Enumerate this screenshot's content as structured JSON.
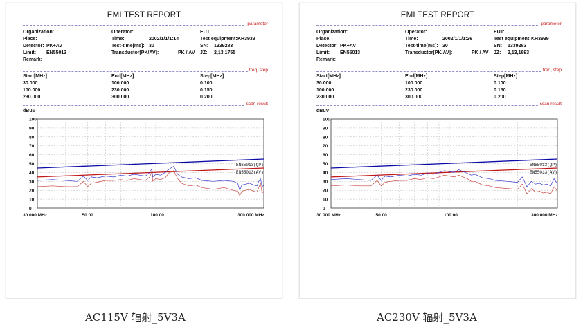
{
  "reports": [
    {
      "title": "EMI TEST REPORT",
      "section_labels": {
        "parameter": "parameter",
        "freq_step": "freq, step",
        "scan_result": "scan result"
      },
      "params": {
        "organization_label": "Organization:",
        "place_label": "Place:",
        "detector_label": "Detector:",
        "detector_value": "PK+AV",
        "limit_label": "Limit:",
        "limit_value": "EN55013",
        "remark_label": "Remark:",
        "operator_label": "Operator:",
        "time_label": "Time:",
        "time_value": "2002/1/1/1:14",
        "testtime_label": "Test-time[ms]:",
        "testtime_value": "30",
        "transducer_label": "Transductor[PK/AV]:",
        "transducer_value": "PK / AV",
        "eut_label": "EUT:",
        "equipment_label": "Test equipment:",
        "equipment_value": "KH3939",
        "sn_label": "SN:",
        "sn_value": "1339283",
        "jz_label": "JZ:",
        "jz_value": "2,13,1755"
      },
      "steps": {
        "headers": [
          "Start[MHz]",
          "End[MHz]",
          "Step[MHz]"
        ],
        "rows": [
          [
            "30.000",
            "100.000",
            "0.100"
          ],
          [
            "100.000",
            "230.000",
            "0.150"
          ],
          [
            "230.000",
            "300.000",
            "0.200"
          ]
        ]
      },
      "caption": "AC115V 辐射_5V3A"
    },
    {
      "title": "EMI TEST REPORT",
      "section_labels": {
        "parameter": "parameter",
        "freq_step": "freq, step",
        "scan_result": "scan result"
      },
      "params": {
        "organization_label": "Organization:",
        "place_label": "Place:",
        "detector_label": "Detector:",
        "detector_value": "PK+AV",
        "limit_label": "Limit:",
        "limit_value": "EN55013",
        "remark_label": "Remark:",
        "operator_label": "Operator:",
        "time_label": "Time:",
        "time_value": "2002/1/1/1:26",
        "testtime_label": "Test-time[ms]:",
        "testtime_value": "30",
        "transducer_label": "Transductor[PK/AV]:",
        "transducer_value": "PK / AV",
        "eut_label": "EUT:",
        "equipment_label": "Test equipment:",
        "equipment_value": "KH3939",
        "sn_label": "SN:",
        "sn_value": "1339283",
        "jz_label": "JZ:",
        "jz_value": "2,13,1693"
      },
      "steps": {
        "headers": [
          "Start[MHz]",
          "End[MHz]",
          "Step[MHz]"
        ],
        "rows": [
          [
            "30.000",
            "100.000",
            "0.100"
          ],
          [
            "100.000",
            "230.000",
            "0.150"
          ],
          [
            "230.000",
            "300.000",
            "0.200"
          ]
        ]
      },
      "caption": "AC230V 辐射_5V3A"
    }
  ],
  "chart_data": [
    {
      "type": "line",
      "ylabel": "dBuV",
      "ylim": [
        0,
        100
      ],
      "yticks": [
        "100",
        "90",
        "80",
        "70",
        "60",
        "50",
        "40",
        "30",
        "20",
        "10",
        "0"
      ],
      "xscale": "log",
      "xlim": [
        30,
        300
      ],
      "xtick_labels": [
        "30.000 MHz",
        "50.00",
        "100.00",
        "300.000 MHz"
      ],
      "grid": true,
      "colors": {
        "qp_limit": "#0a0aa8",
        "av_limit": "#c01818",
        "peak": "#3a3ad2",
        "average": "#c84646"
      },
      "series": [
        {
          "name": "EN55013(QP)",
          "role": "qp_limit",
          "x": [
            30,
            300
          ],
          "y": [
            45,
            55
          ]
        },
        {
          "name": "EN55013(AV)",
          "role": "av_limit",
          "x": [
            30,
            300
          ],
          "y": [
            35,
            45
          ]
        },
        {
          "role": "peak",
          "x": [
            30,
            35,
            40,
            45,
            48,
            50,
            52,
            55,
            60,
            65,
            70,
            75,
            80,
            85,
            90,
            94,
            96,
            97,
            100,
            105,
            110,
            115,
            120,
            125,
            130,
            140,
            150,
            160,
            180,
            200,
            220,
            230,
            235,
            240,
            250,
            260,
            270,
            280,
            285,
            290,
            295,
            300
          ],
          "y": [
            31,
            32,
            31,
            30,
            36,
            31,
            35,
            34,
            36,
            35,
            37,
            36,
            38,
            37,
            36,
            40,
            44,
            35,
            38,
            37,
            40,
            44,
            47,
            38,
            35,
            33,
            34,
            31,
            30,
            31,
            30,
            28,
            20,
            26,
            27,
            28,
            26,
            25,
            30,
            33,
            24,
            26
          ]
        },
        {
          "role": "average",
          "x": [
            30,
            35,
            40,
            45,
            48,
            50,
            52,
            55,
            60,
            65,
            70,
            75,
            80,
            85,
            90,
            94,
            96,
            97,
            100,
            105,
            110,
            115,
            120,
            125,
            130,
            140,
            150,
            160,
            180,
            200,
            220,
            230,
            235,
            240,
            250,
            260,
            270,
            280,
            285,
            290,
            295,
            300
          ],
          "y": [
            24,
            25,
            24,
            24,
            30,
            24,
            28,
            29,
            31,
            31,
            32,
            31,
            33,
            32,
            31,
            35,
            41,
            30,
            33,
            32,
            34,
            40,
            42,
            33,
            28,
            25,
            26,
            23,
            21,
            23,
            20,
            19,
            14,
            19,
            20,
            21,
            19,
            18,
            23,
            28,
            17,
            19
          ]
        }
      ]
    },
    {
      "type": "line",
      "ylabel": "dBuV",
      "ylim": [
        0,
        100
      ],
      "yticks": [
        "100",
        "90",
        "80",
        "70",
        "60",
        "50",
        "40",
        "30",
        "20",
        "10",
        "0"
      ],
      "xscale": "log",
      "xlim": [
        30,
        300
      ],
      "xtick_labels": [
        "30.000 MHz",
        "50.00",
        "100.00",
        "300.000 MHz"
      ],
      "grid": true,
      "colors": {
        "qp_limit": "#0a0aa8",
        "av_limit": "#c01818",
        "peak": "#3a3ad2",
        "average": "#c84646"
      },
      "series": [
        {
          "name": "EN55013(QP)",
          "role": "qp_limit",
          "x": [
            30,
            300
          ],
          "y": [
            45,
            55
          ]
        },
        {
          "name": "EN55013(AV)",
          "role": "av_limit",
          "x": [
            30,
            300
          ],
          "y": [
            35,
            45
          ]
        },
        {
          "role": "peak",
          "x": [
            30,
            35,
            40,
            45,
            48,
            50,
            52,
            55,
            60,
            65,
            70,
            75,
            80,
            85,
            90,
            95,
            100,
            105,
            110,
            115,
            120,
            125,
            130,
            140,
            150,
            160,
            180,
            200,
            210,
            220,
            230,
            240,
            250,
            260,
            270,
            280,
            290,
            300
          ],
          "y": [
            32,
            33,
            32,
            31,
            37,
            31,
            36,
            35,
            37,
            36,
            38,
            37,
            39,
            38,
            40,
            42,
            41,
            40,
            43,
            41,
            39,
            37,
            38,
            34,
            33,
            31,
            30,
            29,
            35,
            24,
            30,
            27,
            28,
            26,
            27,
            25,
            33,
            27
          ]
        },
        {
          "role": "average",
          "x": [
            30,
            35,
            40,
            45,
            48,
            50,
            52,
            55,
            60,
            65,
            70,
            75,
            80,
            85,
            90,
            95,
            100,
            105,
            110,
            115,
            120,
            125,
            130,
            140,
            150,
            160,
            180,
            200,
            210,
            220,
            230,
            240,
            250,
            260,
            270,
            280,
            290,
            300
          ],
          "y": [
            25,
            26,
            25,
            25,
            31,
            25,
            29,
            30,
            31,
            31,
            33,
            32,
            34,
            33,
            35,
            37,
            36,
            35,
            37,
            35,
            33,
            30,
            30,
            26,
            25,
            23,
            22,
            21,
            27,
            16,
            22,
            18,
            19,
            17,
            18,
            16,
            24,
            19
          ]
        }
      ]
    }
  ]
}
